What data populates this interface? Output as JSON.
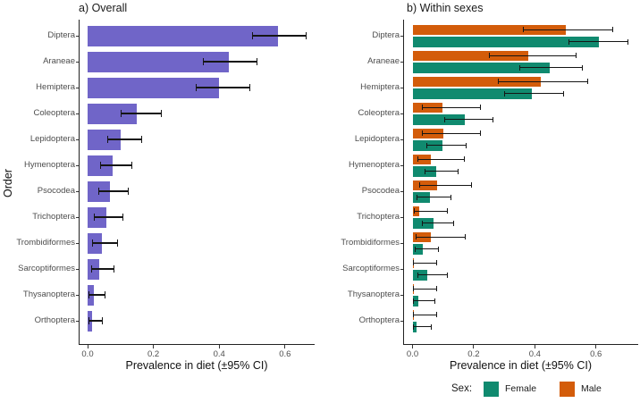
{
  "figure": {
    "ylabel": "Order",
    "xlabel": "Prevalence in diet (±95% CI)"
  },
  "legend": {
    "title": "Sex:",
    "items": [
      {
        "label": "Female",
        "color": "#108A6F"
      },
      {
        "label": "Male",
        "color": "#D35C0A"
      }
    ]
  },
  "chart_data": [
    {
      "type": "bar",
      "title": "a) Overall",
      "orientation": "horizontal",
      "grid": false,
      "bar_color": "#7065C8",
      "xlabel": "Prevalence in diet (±95% CI)",
      "ylabel": "Order",
      "xlim": [
        0,
        0.72
      ],
      "xticks": [
        0.0,
        0.2,
        0.4,
        0.6
      ],
      "xtick_labels": [
        "0.0",
        "0.2",
        "0.4",
        "0.6"
      ],
      "categories": [
        "Diptera",
        "Araneae",
        "Hemiptera",
        "Coleoptera",
        "Lepidoptera",
        "Hymenoptera",
        "Psocodea",
        "Trichoptera",
        "Trombidiformes",
        "Sarcoptiformes",
        "Thysanoptera",
        "Orthoptera"
      ],
      "values": [
        0.58,
        0.43,
        0.4,
        0.15,
        0.1,
        0.075,
        0.068,
        0.057,
        0.043,
        0.036,
        0.018,
        0.013
      ],
      "ci_low": [
        0.5,
        0.35,
        0.33,
        0.1,
        0.06,
        0.039,
        0.033,
        0.02,
        0.014,
        0.011,
        0.004,
        0.002
      ],
      "ci_high": [
        0.66,
        0.51,
        0.49,
        0.22,
        0.16,
        0.13,
        0.12,
        0.104,
        0.086,
        0.077,
        0.05,
        0.04
      ]
    },
    {
      "type": "bar",
      "title": "b) Within sexes",
      "orientation": "horizontal",
      "grid": false,
      "xlabel": "Prevalence in diet (±95% CI)",
      "xlim": [
        0,
        0.74
      ],
      "xticks": [
        0.0,
        0.2,
        0.4,
        0.6
      ],
      "xtick_labels": [
        "0.0",
        "0.2",
        "0.4",
        "0.6"
      ],
      "categories": [
        "Diptera",
        "Araneae",
        "Hemiptera",
        "Coleoptera",
        "Lepidoptera",
        "Hymenoptera",
        "Psocodea",
        "Trichoptera",
        "Trombidiformes",
        "Sarcoptiformes",
        "Thysanoptera",
        "Orthoptera"
      ],
      "series": [
        {
          "name": "Male",
          "color": "#D35C0A",
          "row": "top",
          "values": [
            0.5,
            0.38,
            0.42,
            0.098,
            0.1,
            0.06,
            0.08,
            0.023,
            0.061,
            0.004,
            0.004,
            0.004
          ],
          "ci_low": [
            0.36,
            0.25,
            0.28,
            0.03,
            0.032,
            0.015,
            0.023,
            0.003,
            0.01,
            0.0,
            0.0,
            0.0
          ],
          "ci_high": [
            0.65,
            0.53,
            0.57,
            0.218,
            0.218,
            0.165,
            0.19,
            0.11,
            0.168,
            0.074,
            0.074,
            0.074
          ]
        },
        {
          "name": "Female",
          "color": "#108A6F",
          "row": "bottom",
          "values": [
            0.61,
            0.45,
            0.39,
            0.17,
            0.098,
            0.078,
            0.057,
            0.069,
            0.033,
            0.049,
            0.02,
            0.013
          ],
          "ci_low": [
            0.51,
            0.35,
            0.3,
            0.105,
            0.044,
            0.039,
            0.013,
            0.03,
            0.007,
            0.015,
            0.002,
            0.001
          ],
          "ci_high": [
            0.7,
            0.55,
            0.49,
            0.26,
            0.17,
            0.145,
            0.12,
            0.13,
            0.081,
            0.11,
            0.069,
            0.056
          ]
        }
      ]
    }
  ]
}
